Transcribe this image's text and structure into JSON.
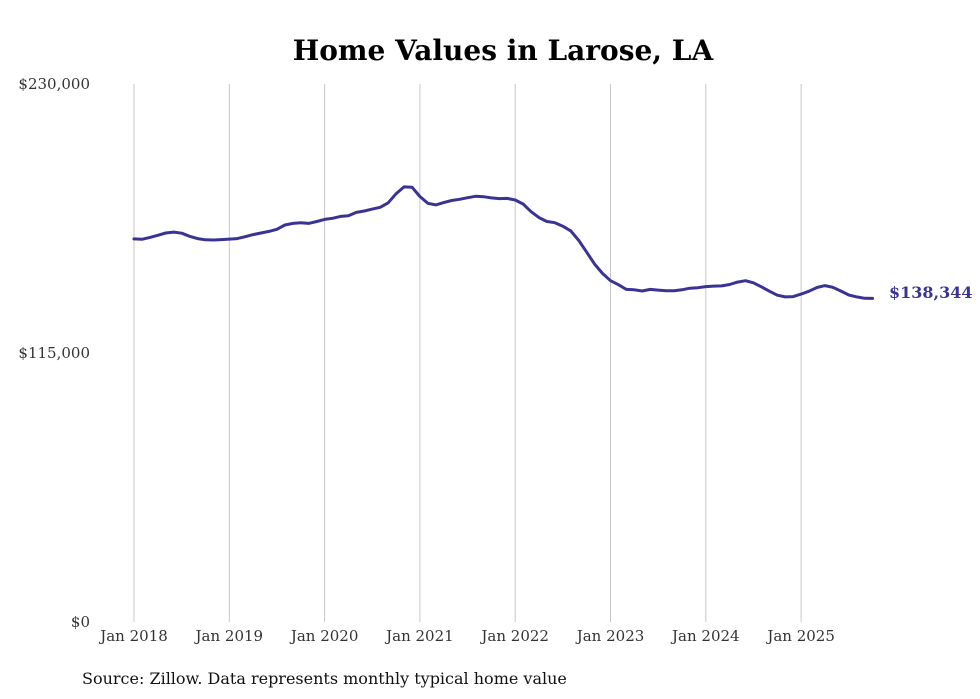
{
  "chart_data": {
    "type": "line",
    "title": "Home Values in Larose, LA",
    "xlabel": "",
    "ylabel": "",
    "ylim": [
      0,
      230000
    ],
    "yticks": [
      {
        "value": 0,
        "label": "$0"
      },
      {
        "value": 115000,
        "label": "$115,000"
      },
      {
        "value": 230000,
        "label": "$230,000"
      }
    ],
    "xticks": [
      {
        "value": 2018.0,
        "label": "Jan 2018"
      },
      {
        "value": 2019.0,
        "label": "Jan 2019"
      },
      {
        "value": 2020.0,
        "label": "Jan 2020"
      },
      {
        "value": 2021.0,
        "label": "Jan 2021"
      },
      {
        "value": 2022.0,
        "label": "Jan 2022"
      },
      {
        "value": 2023.0,
        "label": "Jan 2023"
      },
      {
        "value": 2024.0,
        "label": "Jan 2024"
      },
      {
        "value": 2025.0,
        "label": "Jan 2025"
      }
    ],
    "xlim": [
      2018.0,
      2025.75
    ],
    "grid": "vertical",
    "series": [
      {
        "name": "Typical home value",
        "color": "#3b3394",
        "x": [
          2018.0,
          2018.083,
          2018.167,
          2018.25,
          2018.333,
          2018.417,
          2018.5,
          2018.583,
          2018.667,
          2018.75,
          2018.833,
          2018.917,
          2019.0,
          2019.083,
          2019.167,
          2019.25,
          2019.333,
          2019.417,
          2019.5,
          2019.583,
          2019.667,
          2019.75,
          2019.833,
          2019.917,
          2020.0,
          2020.083,
          2020.167,
          2020.25,
          2020.333,
          2020.417,
          2020.5,
          2020.583,
          2020.667,
          2020.75,
          2020.833,
          2020.917,
          2021.0,
          2021.083,
          2021.167,
          2021.25,
          2021.333,
          2021.417,
          2021.5,
          2021.583,
          2021.667,
          2021.75,
          2021.833,
          2021.917,
          2022.0,
          2022.083,
          2022.167,
          2022.25,
          2022.333,
          2022.417,
          2022.5,
          2022.583,
          2022.667,
          2022.75,
          2022.833,
          2022.917,
          2023.0,
          2023.083,
          2023.167,
          2023.25,
          2023.333,
          2023.417,
          2023.5,
          2023.583,
          2023.667,
          2023.75,
          2023.833,
          2023.917,
          2024.0,
          2024.083,
          2024.167,
          2024.25,
          2024.333,
          2024.417,
          2024.5,
          2024.583,
          2024.667,
          2024.75,
          2024.833,
          2024.917,
          2025.0,
          2025.083,
          2025.167,
          2025.25,
          2025.333,
          2025.417,
          2025.5,
          2025.583,
          2025.667,
          2025.75
        ],
        "y": [
          163800,
          163600,
          164400,
          165300,
          166300,
          166700,
          166200,
          164900,
          163900,
          163400,
          163300,
          163500,
          163700,
          163900,
          164700,
          165600,
          166300,
          167000,
          167900,
          169700,
          170400,
          170700,
          170400,
          171200,
          172100,
          172600,
          173400,
          173700,
          175100,
          175700,
          176500,
          177300,
          179200,
          183100,
          186000,
          185900,
          181900,
          179000,
          178300,
          179300,
          180200,
          180700,
          181400,
          182000,
          181800,
          181300,
          181000,
          181100,
          180400,
          178700,
          175400,
          172900,
          171200,
          170700,
          169200,
          167200,
          163100,
          158100,
          153000,
          149000,
          145900,
          144200,
          142200,
          142000,
          141500,
          142200,
          141900,
          141600,
          141600,
          142000,
          142700,
          142900,
          143400,
          143600,
          143700,
          144300,
          145300,
          145900,
          145000,
          143300,
          141400,
          139700,
          139000,
          139100,
          140200,
          141400,
          143000,
          143800,
          143100,
          141500,
          139800,
          139000,
          138400,
          138344
        ]
      }
    ],
    "end_label": "$138,344",
    "source_note": "Source: Zillow. Data represents monthly typical home value"
  }
}
